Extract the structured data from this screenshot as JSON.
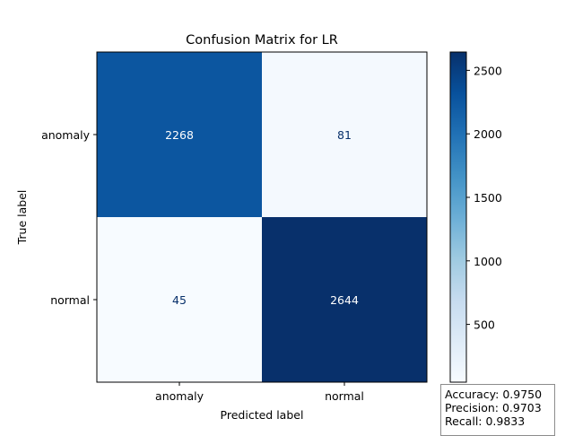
{
  "chart_data": {
    "type": "heatmap",
    "title": "Confusion Matrix for LR",
    "xlabel": "Predicted label",
    "ylabel": "True label",
    "x_categories": [
      "anomaly",
      "normal"
    ],
    "y_categories": [
      "anomaly",
      "normal"
    ],
    "values": [
      [
        2268,
        81
      ],
      [
        45,
        2644
      ]
    ],
    "colormap": "Blues",
    "colorbar": {
      "range": [
        45,
        2644
      ],
      "ticks": [
        500,
        1000,
        1500,
        2000,
        2500
      ]
    }
  },
  "metrics": {
    "accuracy": "Accuracy: 0.9750",
    "precision": "Precision: 0.9703",
    "recall": "Recall: 0.9833"
  }
}
